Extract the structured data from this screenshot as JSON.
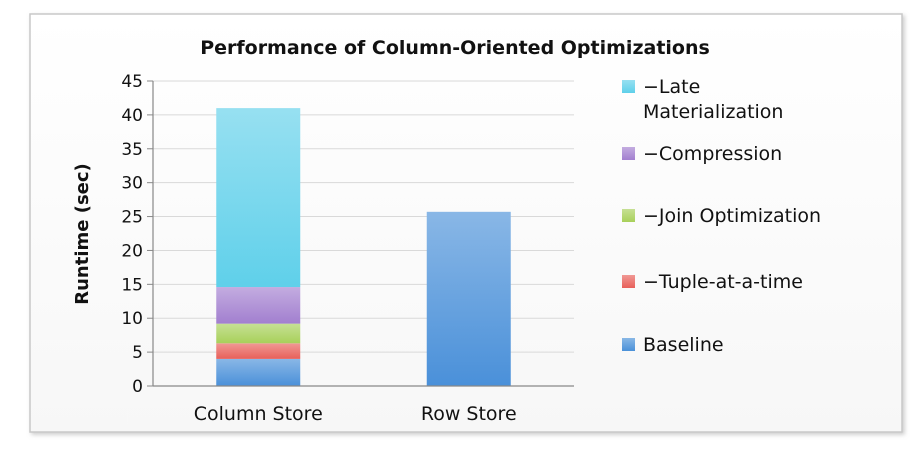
{
  "chart_data": {
    "type": "bar",
    "stacked": true,
    "title": "Performance of Column-Oriented Optimizations",
    "xlabel": "",
    "ylabel": "Runtime (sec)",
    "ylim": [
      0,
      45
    ],
    "yticks": [
      0,
      5,
      10,
      15,
      20,
      25,
      30,
      35,
      40,
      45
    ],
    "grid": true,
    "legend_position": "right",
    "categories": [
      "Column Store",
      "Row Store"
    ],
    "series": [
      {
        "name": "Baseline",
        "color": "#4a90d9",
        "values": [
          4,
          25.7
        ]
      },
      {
        "name": "−Tuple-at-a-time",
        "color": "#e8605a",
        "values": [
          2.3,
          0
        ]
      },
      {
        "name": "−Join Optimization",
        "color": "#a8d05a",
        "values": [
          2.9,
          0
        ]
      },
      {
        "name": "−Compression",
        "color": "#a27fcf",
        "values": [
          5.4,
          0
        ]
      },
      {
        "name": "−Late Materialization",
        "color": "#5fd0ea",
        "values": [
          26.4,
          0
        ]
      }
    ],
    "legend": {
      "entries": [
        {
          "series_index": 4,
          "lines": [
            "−Late",
            "Materialization"
          ]
        },
        {
          "series_index": 3,
          "lines": [
            "−Compression"
          ]
        },
        {
          "series_index": 2,
          "lines": [
            "−Join Optimization"
          ]
        },
        {
          "series_index": 1,
          "lines": [
            "−Tuple-at-a-time"
          ]
        },
        {
          "series_index": 0,
          "lines": [
            "Baseline"
          ]
        }
      ]
    }
  }
}
